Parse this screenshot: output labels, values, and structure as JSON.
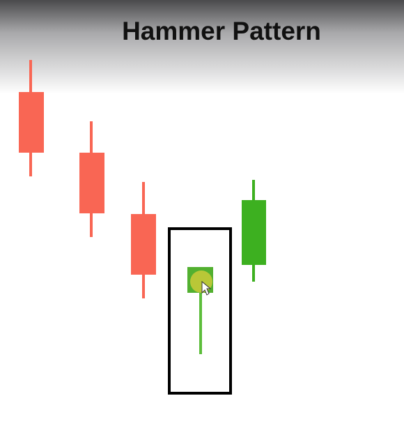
{
  "header": {
    "title": "Hammer Pattern"
  }
}
